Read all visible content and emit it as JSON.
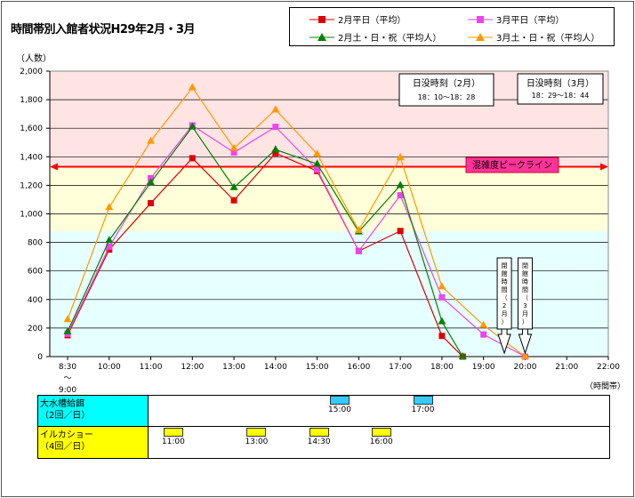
{
  "title": "時間帯別入館者状況H29年2月・3月",
  "y_unit": "（人数）",
  "x_unit": "（時間帯）",
  "legend": [
    {
      "label": "2月平日（平均）",
      "color": "#dd0000",
      "marker": "square"
    },
    {
      "label": "3月平日（平均）",
      "color": "#ee44ee",
      "marker": "square"
    },
    {
      "label": "2月土・日・祝（平均人）",
      "color": "#008000",
      "marker": "triangle"
    },
    {
      "label": "3月土・日・祝（平均人）",
      "color": "#ff9900",
      "marker": "triangle"
    }
  ],
  "sunset_feb": {
    "title": "日没時刻（2月）",
    "range": "18：10～18：28"
  },
  "sunset_mar": {
    "title": "日没時刻（3月）",
    "range": "18：29～18：44"
  },
  "peak_label": "混雑度ピークライン",
  "closing_feb": [
    "閉",
    "館",
    "時",
    "間",
    "（",
    "2",
    "月",
    "）"
  ],
  "closing_mar": [
    "閉",
    "館",
    "時",
    "間",
    "（",
    "3",
    "月",
    "）"
  ],
  "chart_data": {
    "type": "line",
    "categories": [
      "8:30～9:00",
      "10:00",
      "11:00",
      "12:00",
      "13:00",
      "14:00",
      "15:00",
      "16:00",
      "17:00",
      "18:00",
      "19:00",
      "20:00",
      "21:00",
      "22:00"
    ],
    "x_tick_labels": [
      {
        "label": "8:30",
        "sub": [
          "～",
          "9:00"
        ]
      },
      {
        "label": "10:00"
      },
      {
        "label": "11:00"
      },
      {
        "label": "12:00"
      },
      {
        "label": "13:00"
      },
      {
        "label": "14:00"
      },
      {
        "label": "15:00"
      },
      {
        "label": "16:00"
      },
      {
        "label": "17:00"
      },
      {
        "label": "18:00"
      },
      {
        "label": "19:00"
      },
      {
        "label": "20:00"
      },
      {
        "label": "21:00"
      },
      {
        "label": "22:00"
      }
    ],
    "y_ticks": [
      "0",
      "200",
      "400",
      "600",
      "800",
      "1,000",
      "1,200",
      "1,400",
      "1,600",
      "1,800",
      "2,000"
    ],
    "ylim": [
      0,
      2000
    ],
    "peak_line": 1330,
    "bands": [
      {
        "from": 0,
        "to": 880,
        "color": "#e6ffff"
      },
      {
        "from": 880,
        "to": 1330,
        "color": "#ffffd9"
      },
      {
        "from": 1330,
        "to": 2000,
        "color": "#ffe4e4"
      }
    ],
    "closing_times": {
      "feb": 18.5,
      "mar": 20
    },
    "series": [
      {
        "name": "2月平日（平均）",
        "color": "#dd0000",
        "marker": "square",
        "x": [
          0,
          1,
          2,
          3,
          4,
          5,
          6,
          7,
          8,
          9,
          9.5
        ],
        "y": [
          150,
          750,
          1075,
          1390,
          1095,
          1425,
          1300,
          740,
          880,
          145,
          0
        ]
      },
      {
        "name": "3月平日（平均）",
        "color": "#ee44ee",
        "marker": "square",
        "x": [
          0,
          1,
          2,
          3,
          4,
          5,
          6,
          7,
          8,
          9,
          10,
          11
        ],
        "y": [
          160,
          770,
          1250,
          1620,
          1430,
          1610,
          1310,
          740,
          1130,
          415,
          155,
          0
        ]
      },
      {
        "name": "2月土・日・祝（平均人）",
        "color": "#008000",
        "marker": "triangle",
        "x": [
          0,
          1,
          2,
          3,
          4,
          5,
          6,
          7,
          8,
          9,
          9.5
        ],
        "y": [
          175,
          815,
          1220,
          1610,
          1185,
          1450,
          1350,
          875,
          1200,
          245,
          0
        ]
      },
      {
        "name": "3月土・日・祝（平均人）",
        "color": "#ff9900",
        "marker": "triangle",
        "x": [
          0,
          1,
          2,
          3,
          4,
          5,
          6,
          7,
          8,
          9,
          10,
          11
        ],
        "y": [
          260,
          1045,
          1510,
          1885,
          1460,
          1730,
          1420,
          885,
          1395,
          490,
          220,
          0
        ]
      }
    ]
  },
  "schedule": {
    "rows": [
      {
        "label": [
          "大水槽給餌",
          "（2回／日）"
        ],
        "color": "cyan",
        "times": [
          {
            "t": "15:00",
            "x": 6.5
          },
          {
            "t": "17:00",
            "x": 8.5
          }
        ]
      },
      {
        "label": [
          "イルカショー",
          "（4回／日）"
        ],
        "color": "yel",
        "times": [
          {
            "t": "11:00",
            "x": 2.5
          },
          {
            "t": "13:00",
            "x": 4.5
          },
          {
            "t": "14:30",
            "x": 6.0
          },
          {
            "t": "16:00",
            "x": 7.5
          }
        ]
      }
    ]
  }
}
